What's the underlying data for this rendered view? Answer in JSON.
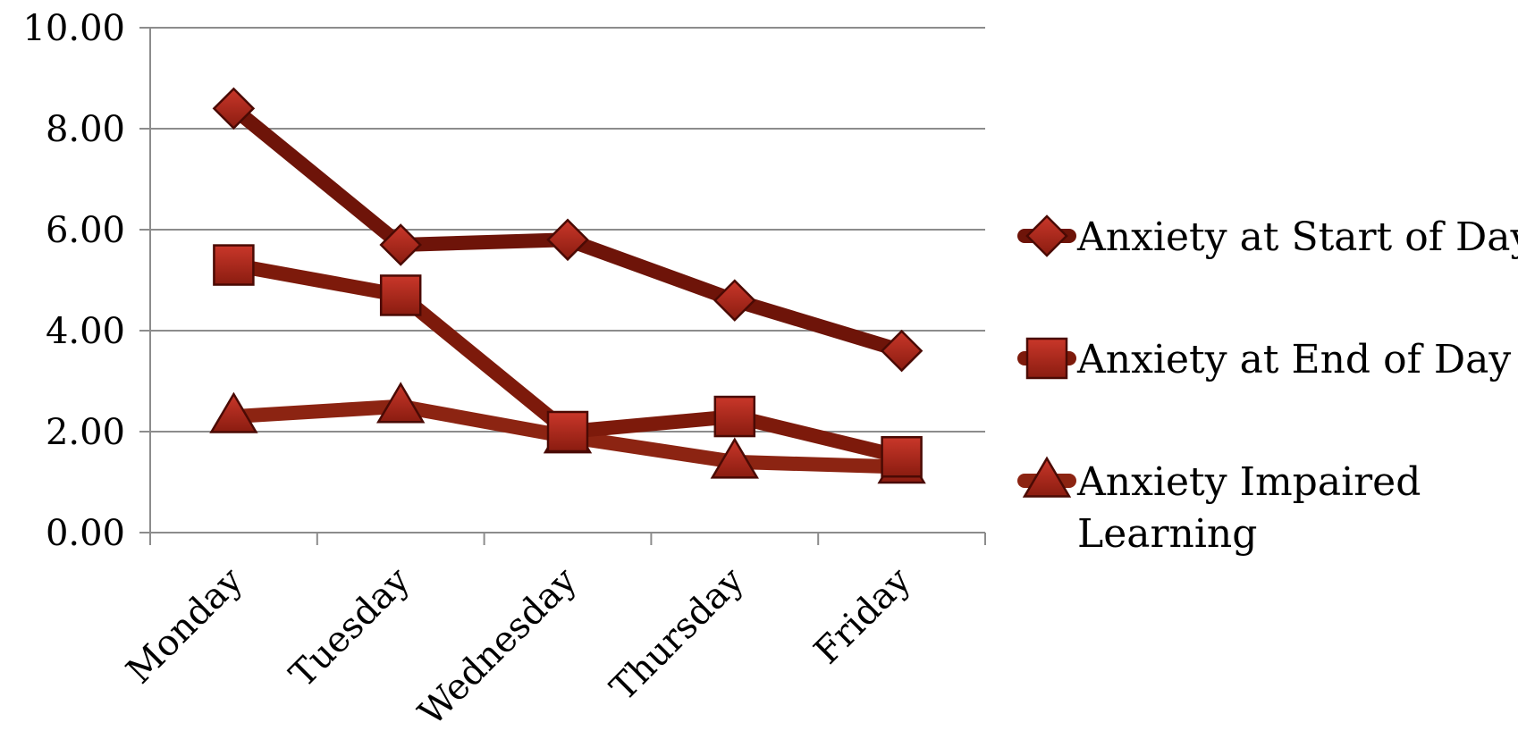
{
  "chart_data": {
    "type": "line",
    "categories": [
      "Monday",
      "Tuesday",
      "Wednesday",
      "Thursday",
      "Friday"
    ],
    "ylim": [
      0,
      10
    ],
    "yticks": [
      "0.00",
      "2.00",
      "4.00",
      "6.00",
      "8.00",
      "10.00"
    ],
    "grid": true,
    "legend_position": "right",
    "series": [
      {
        "name": "Anxiety at Start of Day",
        "legend_lines": [
          "Anxiety at Start of Day"
        ],
        "marker": "diamond",
        "color": "#6e1409",
        "values": [
          8.4,
          5.7,
          5.8,
          4.6,
          3.6
        ]
      },
      {
        "name": "Anxiety at End of Day",
        "legend_lines": [
          "Anxiety at End of Day"
        ],
        "marker": "square",
        "color": "#7d1a0b",
        "values": [
          5.3,
          4.7,
          2.0,
          2.3,
          1.5
        ]
      },
      {
        "name": "Anxiety Impaired Learning",
        "legend_lines": [
          "Anxiety Impaired",
          "Learning"
        ],
        "marker": "triangle",
        "color": "#8c2412",
        "values": [
          2.3,
          2.5,
          1.9,
          1.4,
          1.3
        ]
      }
    ]
  }
}
